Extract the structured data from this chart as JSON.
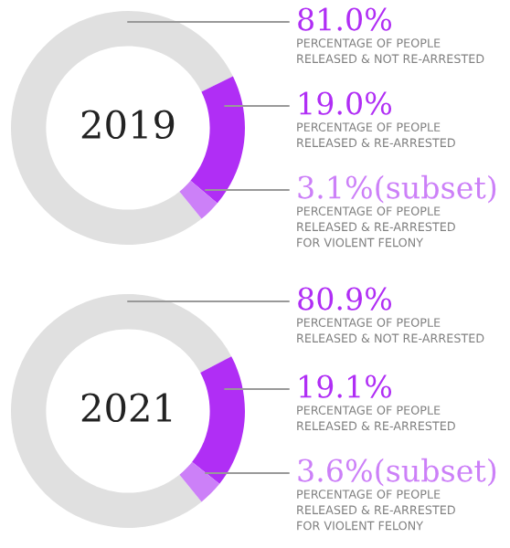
{
  "chart_data": [
    {
      "type": "donut",
      "title": "2019",
      "categories": [
        "PERCENTAGE OF PEOPLE\nRELEASED & NOT RE-ARRESTED",
        "PERCENTAGE OF PEOPLE\nRELEASED & RE-ARRESTED",
        "PERCENTAGE OF PEOPLE\nRELEASED & RE-ARRESTED\nFOR VIOLENT FELONY"
      ],
      "values": [
        81.0,
        19.0,
        3.1
      ],
      "value_labels": [
        "81.0%",
        "19.0%",
        "3.1%(subset)"
      ],
      "colors": [
        "#e0e0e0",
        "#b02ef5",
        "#cc80f8"
      ]
    },
    {
      "type": "donut",
      "title": "2021",
      "categories": [
        "PERCENTAGE OF PEOPLE\nRELEASED & NOT RE-ARRESTED",
        "PERCENTAGE OF PEOPLE\nRELEASED & RE-ARRESTED",
        "PERCENTAGE OF PEOPLE\nRELEASED & RE-ARRESTED\nFOR VIOLENT FELONY"
      ],
      "values": [
        80.9,
        19.1,
        3.6
      ],
      "value_labels": [
        "80.9%",
        "19.1%",
        "3.6%(subset)"
      ],
      "colors": [
        "#e0e0e0",
        "#b02ef5",
        "#cc80f8"
      ]
    }
  ]
}
